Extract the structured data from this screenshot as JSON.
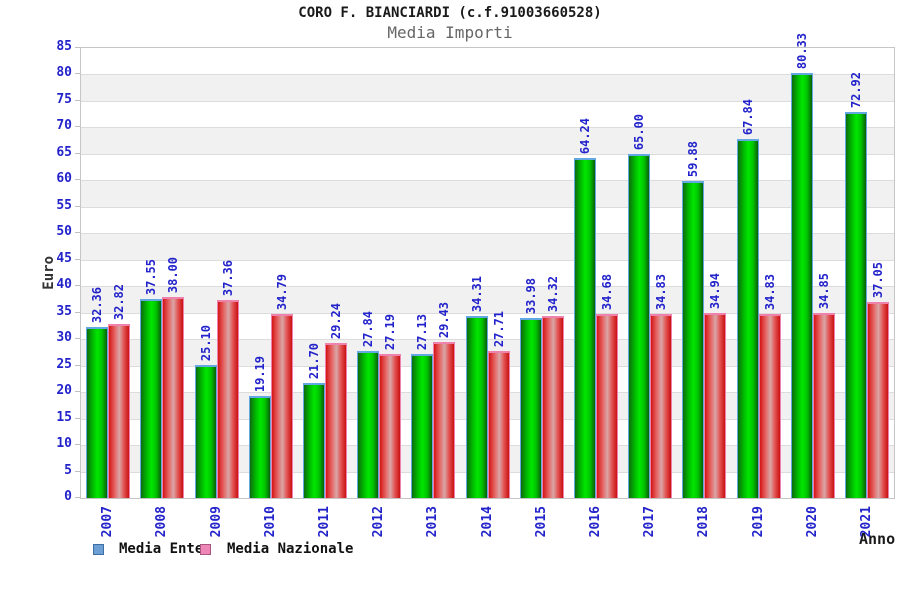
{
  "title": "CORO F. BIANCIARDI (c.f.91003660528)",
  "subtitle": "Media Importi",
  "chart_data": {
    "type": "bar",
    "title": "CORO F. BIANCIARDI (c.f.91003660528)",
    "subtitle": "Media Importi",
    "xlabel": "Anno",
    "ylabel": "Euro",
    "ylim": [
      0,
      85
    ],
    "ytick_step": 5,
    "yticks": [
      0,
      5,
      10,
      15,
      20,
      25,
      30,
      35,
      40,
      45,
      50,
      55,
      60,
      65,
      70,
      75,
      80,
      85
    ],
    "grid": "horizontal gridlines with alternating gray/white bands",
    "legend_position": "bottom-left",
    "value_labels": "rotated 90deg above each bar, format two decimals",
    "categories": [
      "2007",
      "2008",
      "2009",
      "2010",
      "2011",
      "2012",
      "2013",
      "2014",
      "2015",
      "2016",
      "2017",
      "2018",
      "2019",
      "2020",
      "2021"
    ],
    "series": [
      {
        "name": "Media Ente",
        "values": [
          32.36,
          37.55,
          25.1,
          19.19,
          21.7,
          27.84,
          27.13,
          34.31,
          33.98,
          64.24,
          65.0,
          59.88,
          67.84,
          80.33,
          72.92
        ],
        "bar_gradient": [
          "#0e6b0e",
          "#00b800",
          "#00e600",
          "#00c400",
          "#0a5f0a"
        ],
        "edge_color": "#63a8e3",
        "legend_fill": "#6d9fd4",
        "legend_border": "#3d6fa5"
      },
      {
        "name": "Media Nazionale",
        "values": [
          32.82,
          38.0,
          37.36,
          34.79,
          29.24,
          27.19,
          29.43,
          27.71,
          34.32,
          34.68,
          34.83,
          34.94,
          34.83,
          34.85,
          37.05
        ],
        "bar_gradient": [
          "#d31616",
          "#e66262",
          "#d9a6a6",
          "#e35252",
          "#c91111"
        ],
        "edge_color": "#ef82ad",
        "legend_fill": "#ee86b7",
        "legend_border": "#a85580"
      }
    ]
  },
  "colors": {
    "axis_text": "#2323cb",
    "value_label_text": "#2323cb",
    "title_text": "#1a1a1a",
    "subtitle_text": "#666666",
    "band_gray": "#f1f1f1",
    "band_white": "#ffffff",
    "gridline": "#dcdcdc",
    "plot_border": "#c6c6c6"
  }
}
